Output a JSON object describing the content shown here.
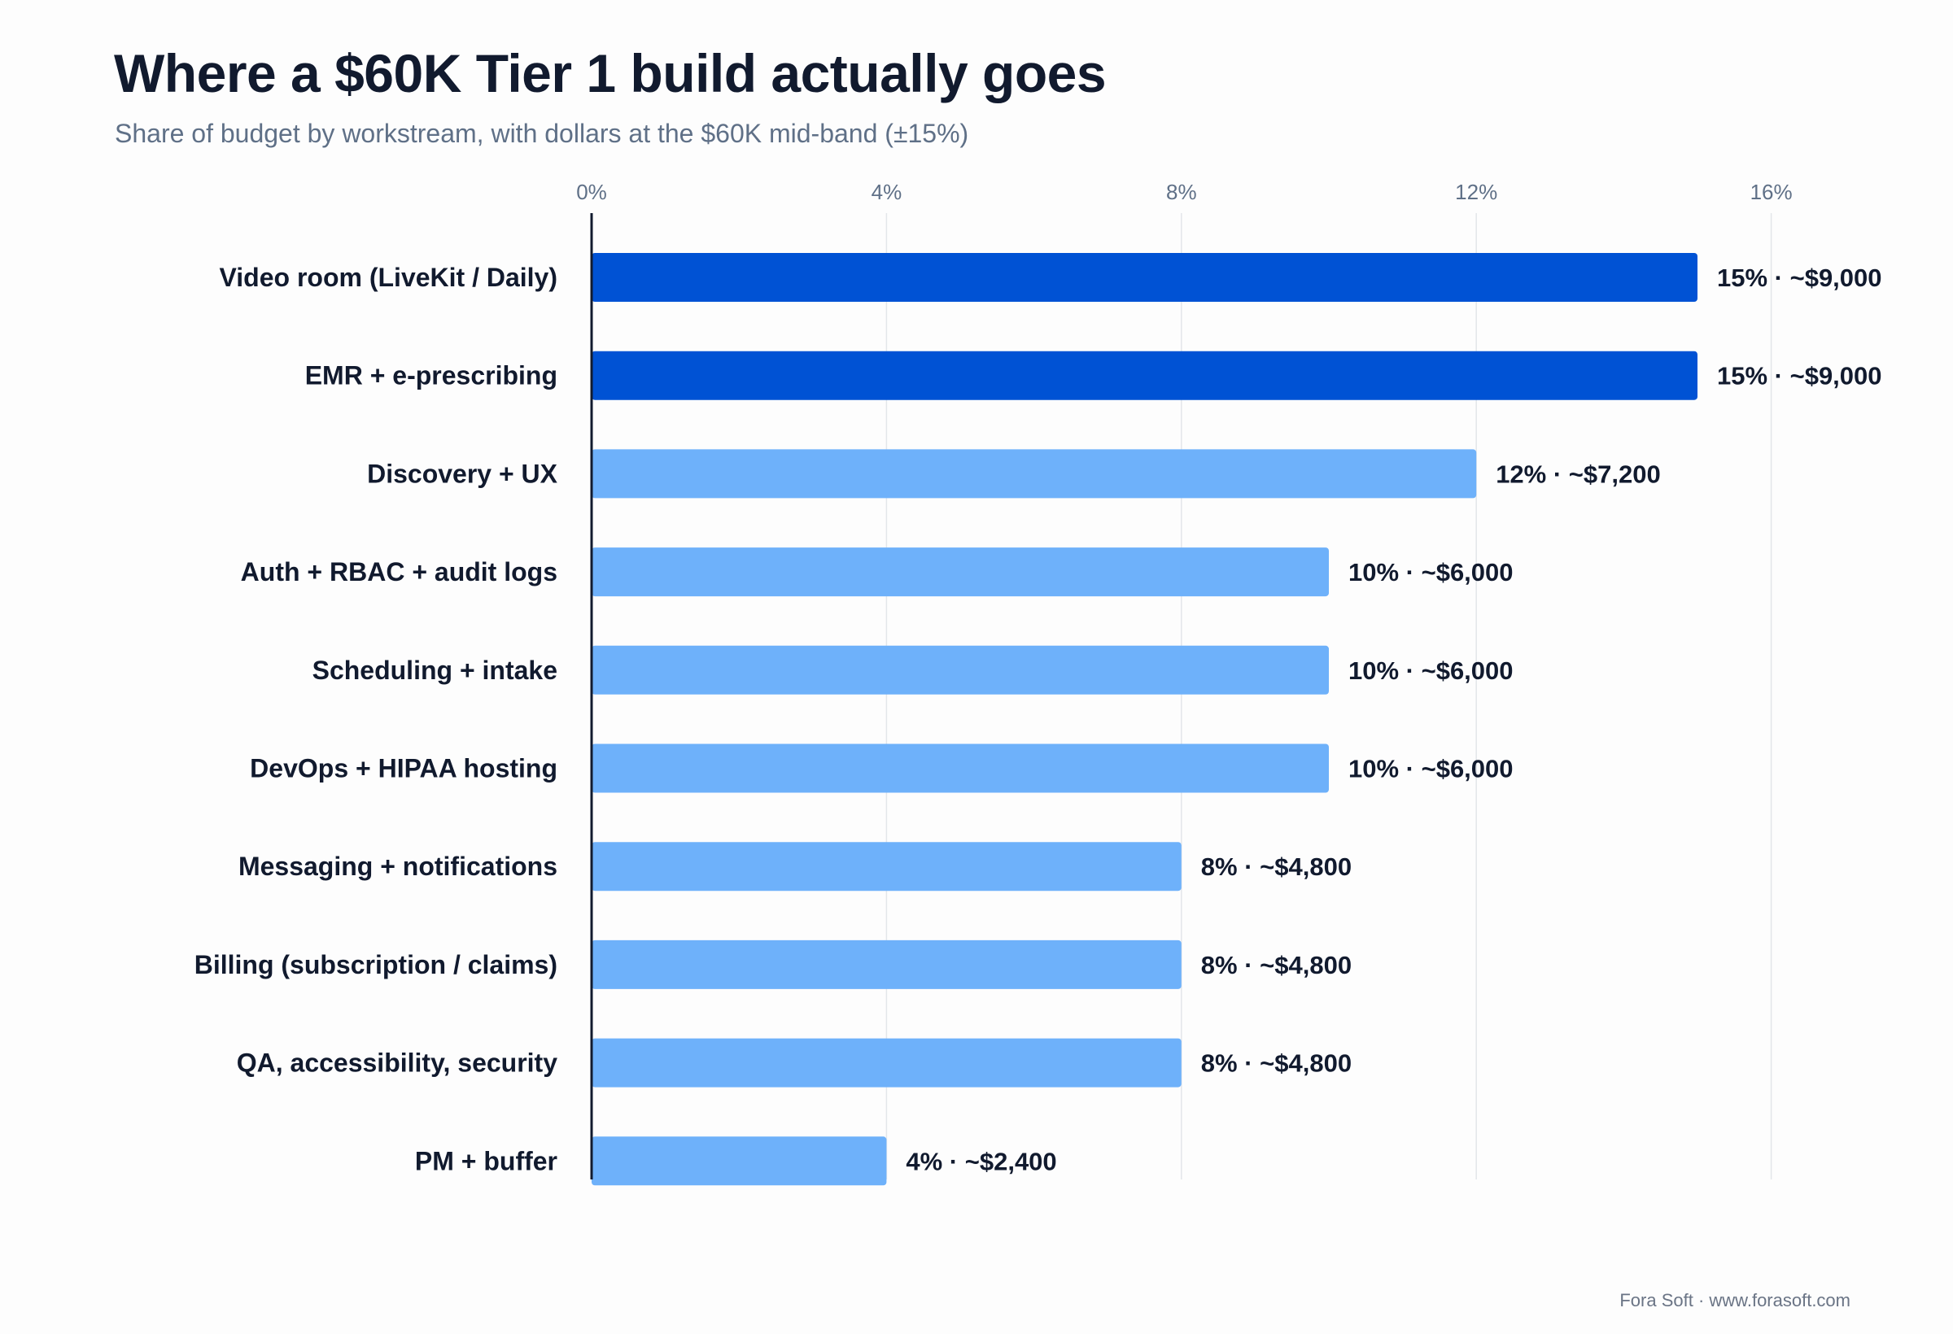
{
  "title": "Where a $60K Tier 1 build actually goes",
  "subtitle": "Share of budget by workstream, with dollars at the $60K mid-band (±15%)",
  "footer": "Fora Soft · www.forasoft.com",
  "colors": {
    "highlight": "#0052d4",
    "standard": "#6eb1fa",
    "grid": "#e3e6ea",
    "axis": "#111a2e"
  },
  "chart_data": {
    "type": "bar",
    "orientation": "horizontal",
    "title": "Where a $60K Tier 1 build actually goes",
    "subtitle": "Share of budget by workstream, with dollars at the $60K mid-band (±15%)",
    "xlim": [
      0,
      16
    ],
    "x_ticks": [
      "0%",
      "4%",
      "8%",
      "12%",
      "16%"
    ],
    "x_tick_values": [
      0,
      4,
      8,
      12,
      16
    ],
    "grid": true,
    "categories": [
      "Video room (LiveKit / Daily)",
      "EMR + e-prescribing",
      "Discovery + UX",
      "Auth + RBAC + audit logs",
      "Scheduling + intake",
      "DevOps + HIPAA hosting",
      "Messaging + notifications",
      "Billing (subscription / claims)",
      "QA, accessibility, security",
      "PM + buffer"
    ],
    "values": [
      15,
      15,
      12,
      10,
      10,
      10,
      8,
      8,
      8,
      4
    ],
    "dollars": [
      9000,
      9000,
      7200,
      6000,
      6000,
      6000,
      4800,
      4800,
      4800,
      2400
    ],
    "highlighted": [
      true,
      true,
      false,
      false,
      false,
      false,
      false,
      false,
      false,
      false
    ],
    "data_labels": [
      "15% · ~$9,000",
      "15% · ~$9,000",
      "12% · ~$7,200",
      "10% · ~$6,000",
      "10% · ~$6,000",
      "10% · ~$6,000",
      "8% · ~$4,800",
      "8% · ~$4,800",
      "8% · ~$4,800",
      "4% · ~$2,400"
    ]
  }
}
